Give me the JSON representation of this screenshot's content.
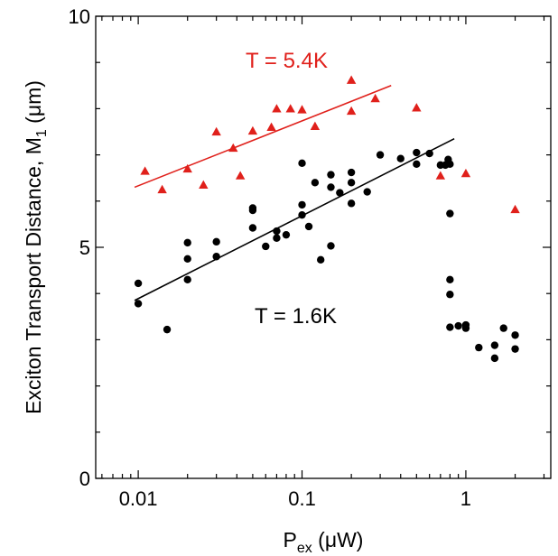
{
  "chart_data": {
    "type": "scatter",
    "x_scale": "log",
    "xlim": [
      0.0055,
      3.3
    ],
    "ylim": [
      0,
      10
    ],
    "x_ticks": [
      0.01,
      0.1,
      1
    ],
    "x_tick_labels": [
      "0.01",
      "0.1",
      "1"
    ],
    "y_ticks": [
      0,
      5,
      10
    ],
    "y_tick_labels": [
      "0",
      "5",
      "10"
    ],
    "xlabel": {
      "main": "P",
      "sub": "ex",
      "unit": " (μW)"
    },
    "ylabel": {
      "main": "Exciton Transport Distance, M",
      "sub": "1",
      "unit": " (μm)"
    },
    "grid": false,
    "legend": "none",
    "series": [
      {
        "name": "T = 1.6K",
        "color": "#000000",
        "marker": "circle",
        "points": [
          [
            0.01,
            4.22
          ],
          [
            0.01,
            3.78
          ],
          [
            0.015,
            3.22
          ],
          [
            0.02,
            5.1
          ],
          [
            0.02,
            4.75
          ],
          [
            0.02,
            4.3
          ],
          [
            0.03,
            5.12
          ],
          [
            0.03,
            4.8
          ],
          [
            0.05,
            5.85
          ],
          [
            0.05,
            5.8
          ],
          [
            0.05,
            5.42
          ],
          [
            0.06,
            5.02
          ],
          [
            0.07,
            5.35
          ],
          [
            0.07,
            5.2
          ],
          [
            0.08,
            5.27
          ],
          [
            0.1,
            6.82
          ],
          [
            0.1,
            5.92
          ],
          [
            0.1,
            5.7
          ],
          [
            0.11,
            5.45
          ],
          [
            0.12,
            6.4
          ],
          [
            0.13,
            4.73
          ],
          [
            0.15,
            6.57
          ],
          [
            0.15,
            6.3
          ],
          [
            0.15,
            5.03
          ],
          [
            0.17,
            6.18
          ],
          [
            0.2,
            6.62
          ],
          [
            0.2,
            6.4
          ],
          [
            0.2,
            5.95
          ],
          [
            0.25,
            6.2
          ],
          [
            0.3,
            7.0
          ],
          [
            0.4,
            6.92
          ],
          [
            0.5,
            7.05
          ],
          [
            0.5,
            6.8
          ],
          [
            0.6,
            7.03
          ],
          [
            0.7,
            6.78
          ],
          [
            0.75,
            6.78
          ],
          [
            0.78,
            6.9
          ],
          [
            0.8,
            6.8
          ],
          [
            0.8,
            5.73
          ],
          [
            0.8,
            4.3
          ],
          [
            0.8,
            3.98
          ],
          [
            0.8,
            3.27
          ],
          [
            0.9,
            3.3
          ],
          [
            1.0,
            3.32
          ],
          [
            1.0,
            3.25
          ],
          [
            1.2,
            2.83
          ],
          [
            1.5,
            2.88
          ],
          [
            1.5,
            2.6
          ],
          [
            1.7,
            3.25
          ],
          [
            2.0,
            3.1
          ],
          [
            2.0,
            2.8
          ]
        ],
        "fit": {
          "x": [
            0.0095,
            0.85
          ],
          "y": [
            3.85,
            7.35
          ]
        },
        "label": "T = 1.6K"
      },
      {
        "name": "T = 5.4K",
        "color": "#e0201b",
        "marker": "triangle",
        "points": [
          [
            0.011,
            6.65
          ],
          [
            0.014,
            6.25
          ],
          [
            0.02,
            6.7
          ],
          [
            0.025,
            6.35
          ],
          [
            0.03,
            7.5
          ],
          [
            0.038,
            7.15
          ],
          [
            0.042,
            6.55
          ],
          [
            0.05,
            7.52
          ],
          [
            0.065,
            7.6
          ],
          [
            0.07,
            8.0
          ],
          [
            0.085,
            8.0
          ],
          [
            0.1,
            7.98
          ],
          [
            0.12,
            7.62
          ],
          [
            0.2,
            8.62
          ],
          [
            0.2,
            7.95
          ],
          [
            0.28,
            8.22
          ],
          [
            0.5,
            8.02
          ],
          [
            0.7,
            6.55
          ],
          [
            1.0,
            6.6
          ],
          [
            2.0,
            5.82
          ]
        ],
        "fit": {
          "x": [
            0.0095,
            0.35
          ],
          "y": [
            6.3,
            8.5
          ]
        },
        "label": "T = 5.4K"
      }
    ]
  }
}
